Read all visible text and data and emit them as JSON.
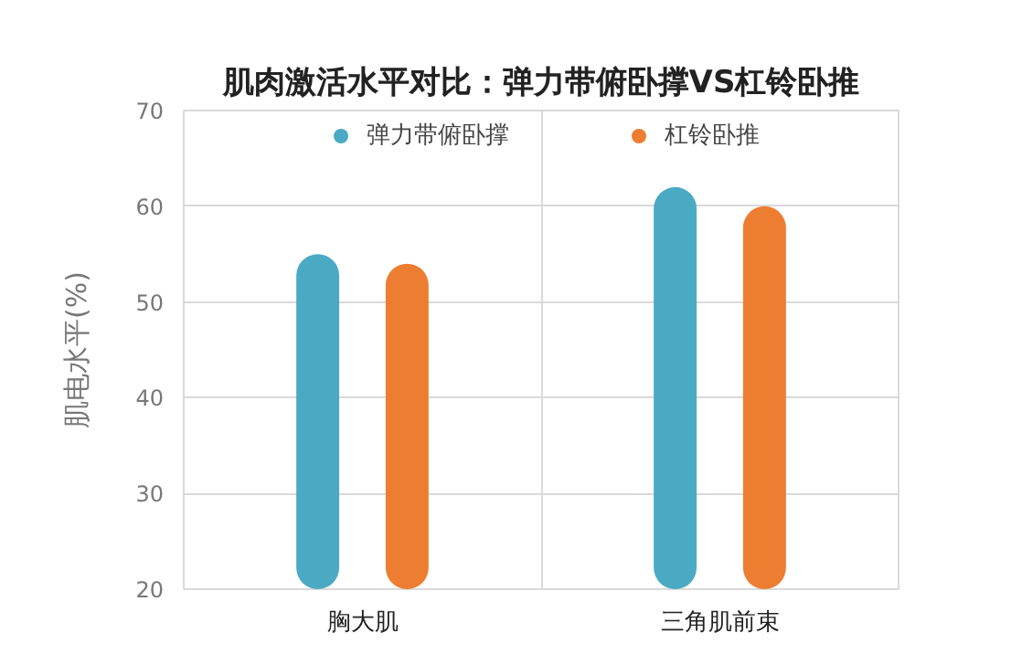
{
  "chart_data": {
    "type": "bar",
    "title": "肌肉激活水平对比：弹力带俯卧撑VS杠铃卧推",
    "ylabel": "肌电水平(%)",
    "categories": [
      "胸大肌",
      "三角肌前束"
    ],
    "series": [
      {
        "name": "弹力带俯卧撑",
        "color": "#4aaac3",
        "values": [
          55,
          62
        ]
      },
      {
        "name": "杠铃卧推",
        "color": "#ed7d31",
        "values": [
          54,
          60
        ]
      }
    ],
    "ylim": [
      20,
      70
    ],
    "yticks": [
      20,
      30,
      40,
      50,
      60,
      70
    ],
    "grid": true,
    "legend": "top"
  }
}
